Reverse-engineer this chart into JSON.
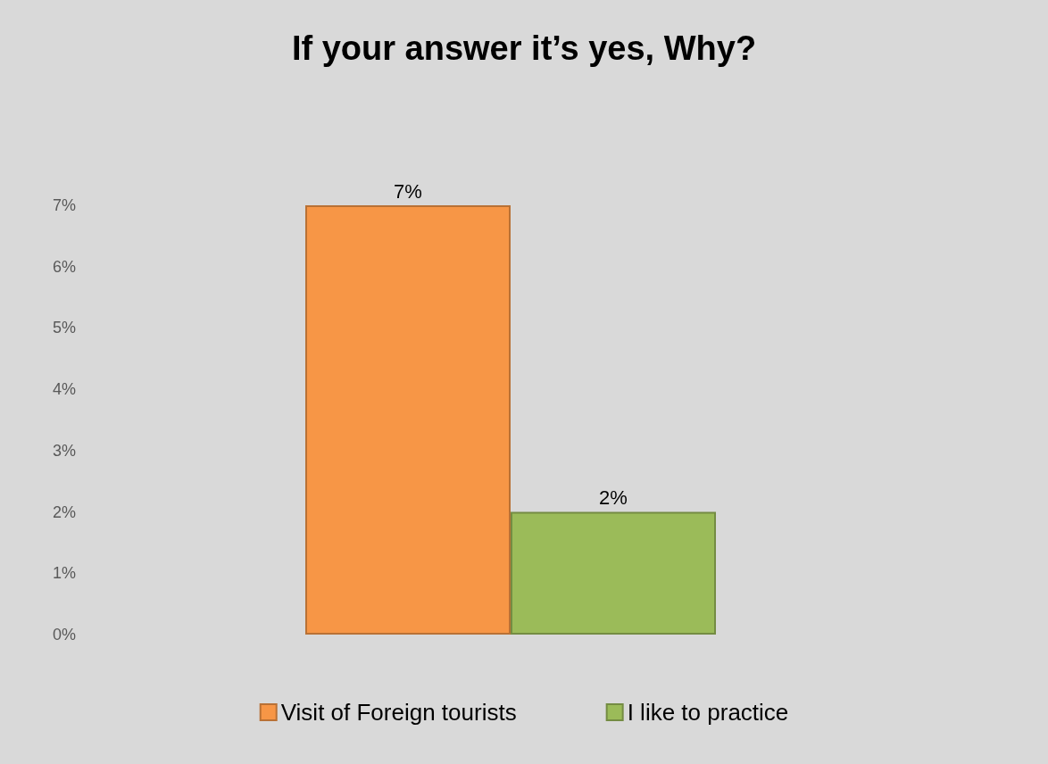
{
  "chart_data": {
    "type": "bar",
    "title": "If your answer it’s yes, Why?",
    "categories": [
      null
    ],
    "series": [
      {
        "name": "Visit of Foreign tourists",
        "color": "#f79646",
        "values": [
          7
        ],
        "value_labels": [
          "7%"
        ]
      },
      {
        "name": "I like to practice",
        "color": "#9bbb59",
        "values": [
          2
        ],
        "value_labels": [
          "2%"
        ]
      }
    ],
    "ylim": [
      0,
      7
    ],
    "yticks": [
      {
        "value": 0,
        "label": "0%"
      },
      {
        "value": 1,
        "label": "1%"
      },
      {
        "value": 2,
        "label": "2%"
      },
      {
        "value": 3,
        "label": "3%"
      },
      {
        "value": 4,
        "label": "4%"
      },
      {
        "value": 5,
        "label": "5%"
      },
      {
        "value": 6,
        "label": "6%"
      },
      {
        "value": 7,
        "label": "7%"
      }
    ],
    "grid": false,
    "legend": "bottom"
  }
}
